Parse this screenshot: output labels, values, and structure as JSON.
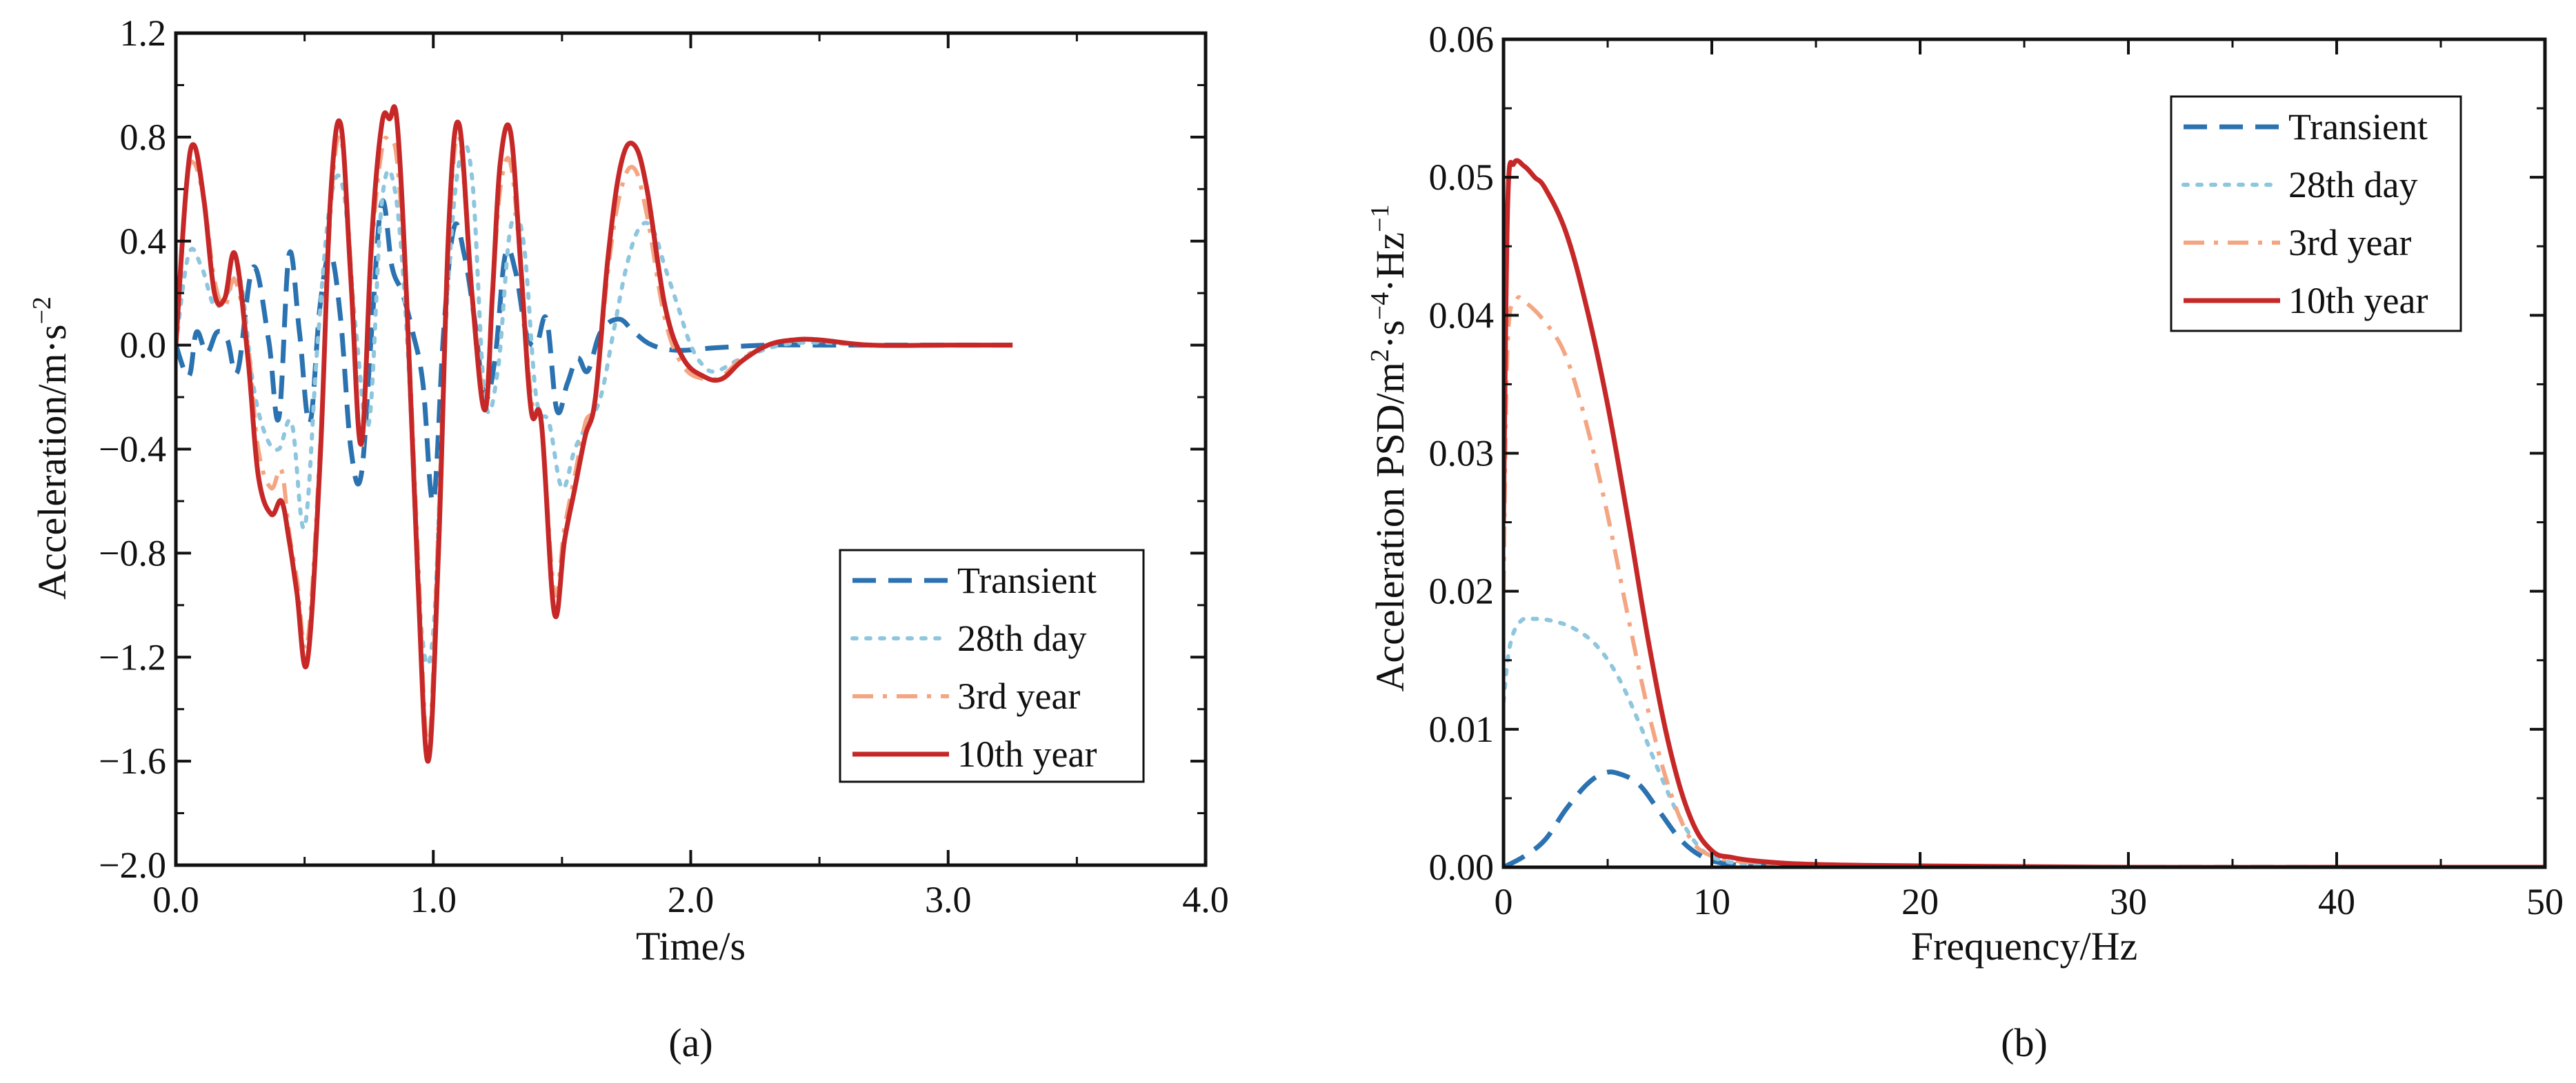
{
  "chart_data": [
    {
      "type": "line",
      "panel_label": "(a)",
      "xlabel": "Time/s",
      "ylabel": {
        "base": "Acceleration/m·s",
        "sup": "−2"
      },
      "xlim": [
        0.0,
        4.0
      ],
      "ylim": [
        -2.0,
        1.2
      ],
      "xticks": [
        "0.0",
        "1.0",
        "2.0",
        "3.0",
        "4.0"
      ],
      "yticks": [
        "−2.0",
        "−1.6",
        "−1.2",
        "−0.8",
        "−0.4",
        "0.0",
        "0.4",
        "0.8",
        "1.2"
      ],
      "legend": {
        "position": "lower-right",
        "entries": [
          "Transient",
          "28th day",
          "3rd year",
          "10th year"
        ]
      },
      "series": [
        {
          "name": "Transient",
          "color": "#2b72b0",
          "dash": "dash",
          "x": [
            0.0,
            0.05,
            0.08,
            0.12,
            0.16,
            0.2,
            0.24,
            0.3,
            0.36,
            0.4,
            0.44,
            0.48,
            0.52,
            0.56,
            0.6,
            0.64,
            0.68,
            0.72,
            0.76,
            0.8,
            0.84,
            0.88,
            0.92,
            0.96,
            1.0,
            1.04,
            1.08,
            1.12,
            1.16,
            1.2,
            1.24,
            1.28,
            1.32,
            1.36,
            1.4,
            1.44,
            1.48,
            1.52,
            1.56,
            1.6,
            1.65,
            1.72,
            1.78,
            1.85,
            1.95,
            2.1,
            2.3,
            2.5,
            2.8,
            3.25
          ],
          "y": [
            0.0,
            -0.12,
            0.05,
            -0.03,
            0.05,
            0.02,
            -0.1,
            0.3,
            0.02,
            -0.28,
            0.35,
            0.05,
            -0.3,
            0.15,
            0.35,
            0.1,
            -0.4,
            -0.5,
            0.05,
            0.55,
            0.3,
            0.2,
            0.05,
            -0.15,
            -0.6,
            0.05,
            0.45,
            0.35,
            0.1,
            -0.2,
            -0.05,
            0.35,
            0.28,
            0.05,
            0.0,
            0.1,
            -0.25,
            -0.15,
            -0.05,
            -0.1,
            0.05,
            0.1,
            0.05,
            0.0,
            -0.02,
            -0.01,
            0.0,
            0.0,
            0.0,
            0.0
          ]
        },
        {
          "name": "28th day",
          "color": "#8ec6de",
          "dash": "dot",
          "x": [
            0.0,
            0.05,
            0.1,
            0.15,
            0.2,
            0.25,
            0.3,
            0.35,
            0.4,
            0.45,
            0.5,
            0.55,
            0.6,
            0.65,
            0.7,
            0.75,
            0.8,
            0.85,
            0.9,
            0.95,
            1.0,
            1.05,
            1.1,
            1.15,
            1.2,
            1.25,
            1.3,
            1.35,
            1.4,
            1.45,
            1.5,
            1.55,
            1.6,
            1.65,
            1.7,
            1.75,
            1.8,
            1.85,
            1.9,
            1.95,
            2.0,
            2.05,
            2.1,
            2.2,
            2.35,
            2.5,
            2.7,
            3.0,
            3.25
          ],
          "y": [
            0.0,
            0.35,
            0.3,
            0.15,
            0.2,
            0.25,
            -0.15,
            -0.35,
            -0.4,
            -0.3,
            -0.7,
            0.0,
            0.55,
            0.6,
            0.05,
            -0.3,
            0.55,
            0.6,
            0.0,
            -1.05,
            -1.1,
            0.1,
            0.7,
            0.65,
            -0.2,
            -0.1,
            0.45,
            0.4,
            -0.2,
            -0.3,
            -0.55,
            -0.4,
            -0.3,
            -0.2,
            0.05,
            0.3,
            0.45,
            0.45,
            0.3,
            0.15,
            0.0,
            -0.08,
            -0.1,
            -0.05,
            0.0,
            0.01,
            0.0,
            0.0,
            0.0
          ]
        },
        {
          "name": "3rd year",
          "color": "#f4a582",
          "dash": "dashdot",
          "x": [
            0.0,
            0.04,
            0.07,
            0.11,
            0.15,
            0.19,
            0.23,
            0.28,
            0.32,
            0.37,
            0.41,
            0.44,
            0.47,
            0.51,
            0.56,
            0.6,
            0.64,
            0.68,
            0.72,
            0.76,
            0.8,
            0.83,
            0.86,
            0.9,
            0.94,
            0.98,
            1.02,
            1.06,
            1.1,
            1.15,
            1.2,
            1.23,
            1.26,
            1.3,
            1.34,
            1.38,
            1.42,
            1.47,
            1.51,
            1.55,
            1.59,
            1.63,
            1.68,
            1.73,
            1.78,
            1.83,
            1.9,
            1.97,
            2.05,
            2.12,
            2.2,
            2.3,
            2.4,
            2.5,
            2.7,
            3.0,
            3.25
          ],
          "y": [
            0.0,
            0.6,
            0.7,
            0.55,
            0.25,
            0.15,
            0.25,
            0.0,
            -0.4,
            -0.55,
            -0.48,
            -0.72,
            -0.9,
            -1.15,
            -0.4,
            0.5,
            0.8,
            0.3,
            -0.4,
            0.35,
            0.75,
            0.78,
            0.7,
            0.1,
            -0.8,
            -1.55,
            -0.7,
            0.4,
            0.8,
            0.2,
            -0.2,
            0.2,
            0.6,
            0.7,
            0.3,
            -0.2,
            -0.3,
            -0.95,
            -0.7,
            -0.5,
            -0.3,
            -0.2,
            0.3,
            0.6,
            0.68,
            0.5,
            0.1,
            -0.08,
            -0.13,
            -0.12,
            -0.05,
            0.0,
            0.02,
            0.02,
            0.0,
            0.0,
            0.0
          ]
        },
        {
          "name": "10th year",
          "color": "#c62828",
          "dash": "solid",
          "x": [
            0.0,
            0.04,
            0.07,
            0.11,
            0.15,
            0.19,
            0.23,
            0.28,
            0.32,
            0.37,
            0.41,
            0.44,
            0.47,
            0.51,
            0.56,
            0.6,
            0.64,
            0.68,
            0.72,
            0.76,
            0.8,
            0.83,
            0.86,
            0.9,
            0.94,
            0.98,
            1.02,
            1.06,
            1.1,
            1.15,
            1.2,
            1.23,
            1.26,
            1.3,
            1.34,
            1.38,
            1.42,
            1.47,
            1.51,
            1.55,
            1.59,
            1.63,
            1.68,
            1.73,
            1.78,
            1.83,
            1.9,
            1.97,
            2.05,
            2.12,
            2.2,
            2.3,
            2.4,
            2.5,
            2.7,
            3.0,
            3.25
          ],
          "y": [
            0.0,
            0.6,
            0.77,
            0.55,
            0.2,
            0.18,
            0.35,
            -0.05,
            -0.5,
            -0.65,
            -0.6,
            -0.75,
            -0.95,
            -1.22,
            -0.45,
            0.55,
            0.85,
            0.25,
            -0.38,
            0.4,
            0.85,
            0.87,
            0.85,
            0.1,
            -0.9,
            -1.6,
            -0.8,
            0.45,
            0.85,
            0.2,
            -0.25,
            0.2,
            0.7,
            0.82,
            0.3,
            -0.25,
            -0.3,
            -1.03,
            -0.75,
            -0.55,
            -0.35,
            -0.2,
            0.35,
            0.7,
            0.77,
            0.6,
            0.15,
            -0.05,
            -0.12,
            -0.13,
            -0.06,
            0.0,
            0.02,
            0.02,
            0.0,
            0.0,
            0.0
          ]
        }
      ]
    },
    {
      "type": "line",
      "panel_label": "(b)",
      "xlabel": "Frequency/Hz",
      "ylabel": {
        "base": "Acceleration PSD/m",
        "sup1": "2",
        "mid": "·s",
        "sup2": "−4",
        "tail": "·Hz",
        "sup3": "−1"
      },
      "xlim": [
        0,
        50
      ],
      "ylim": [
        0.0,
        0.06
      ],
      "xticks": [
        "0",
        "10",
        "20",
        "30",
        "40",
        "50"
      ],
      "yticks": [
        "0.00",
        "0.01",
        "0.02",
        "0.03",
        "0.04",
        "0.05",
        "0.06"
      ],
      "legend": {
        "position": "top-right",
        "entries": [
          "Transient",
          "28th day",
          "3rd year",
          "10th year"
        ]
      },
      "series": [
        {
          "name": "Transient",
          "color": "#2b72b0",
          "dash": "dash",
          "x": [
            0,
            1,
            2,
            3,
            4,
            4.8,
            5.5,
            6.5,
            7.5,
            8.5,
            9.5,
            10.5,
            12,
            15,
            20,
            30,
            40,
            50
          ],
          "y": [
            0.0,
            0.0008,
            0.002,
            0.0042,
            0.006,
            0.0068,
            0.0068,
            0.006,
            0.004,
            0.002,
            0.0008,
            0.0003,
            0.0001,
            0.0,
            0.0,
            0.0,
            0.0,
            0.0
          ]
        },
        {
          "name": "28th day",
          "color": "#8ec6de",
          "dash": "dot",
          "x": [
            0,
            0.3,
            0.8,
            1.5,
            2.5,
            3.5,
            4.5,
            5.5,
            6.5,
            7.5,
            8.5,
            9.5,
            10.5,
            12,
            15,
            20,
            30,
            40,
            50
          ],
          "y": [
            0.012,
            0.016,
            0.0178,
            0.018,
            0.0178,
            0.0172,
            0.016,
            0.0138,
            0.0105,
            0.0068,
            0.0035,
            0.0013,
            0.0005,
            0.0002,
            0.0,
            0.0,
            0.0,
            0.0,
            0.0
          ]
        },
        {
          "name": "3rd year",
          "color": "#f4a582",
          "dash": "dashdot",
          "x": [
            0,
            0.2,
            0.6,
            1.0,
            2.0,
            3.0,
            4.0,
            5.0,
            6.0,
            7.0,
            8.0,
            9.0,
            10.0,
            11.0,
            12.5,
            15,
            20,
            30,
            40,
            50
          ],
          "y": [
            0.02,
            0.038,
            0.041,
            0.041,
            0.0395,
            0.037,
            0.032,
            0.0255,
            0.018,
            0.011,
            0.0055,
            0.002,
            0.0008,
            0.0005,
            0.0003,
            0.0001,
            0.0,
            0.0,
            0.0,
            0.0
          ]
        },
        {
          "name": "10th year",
          "color": "#c62828",
          "dash": "solid",
          "x": [
            0,
            0.2,
            0.5,
            1.0,
            1.5,
            2.0,
            3.0,
            4.0,
            5.0,
            6.0,
            7.0,
            8.0,
            9.0,
            10.0,
            11.0,
            12.5,
            15,
            20,
            30,
            40,
            50
          ],
          "y": [
            0.025,
            0.048,
            0.051,
            0.0508,
            0.05,
            0.0492,
            0.046,
            0.0405,
            0.0335,
            0.025,
            0.016,
            0.0085,
            0.0035,
            0.0012,
            0.0007,
            0.0004,
            0.0002,
            0.0001,
            0.0,
            0.0,
            0.0
          ]
        }
      ]
    }
  ]
}
